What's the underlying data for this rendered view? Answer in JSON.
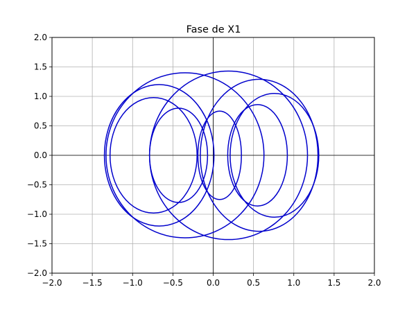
{
  "chart_data": {
    "type": "line",
    "title": "Fase de X1",
    "xlabel": "",
    "ylabel": "",
    "xlim": [
      -2.0,
      2.0
    ],
    "ylim": [
      -2.0,
      2.0
    ],
    "xticks": [
      -2.0,
      -1.5,
      -1.0,
      -0.5,
      0.0,
      0.5,
      1.0,
      1.5,
      2.0
    ],
    "yticks": [
      -2.0,
      -1.5,
      -1.0,
      -0.5,
      0.0,
      0.5,
      1.0,
      1.5,
      2.0
    ],
    "xtick_labels": [
      "−2.0",
      "−1.5",
      "−1.0",
      "−0.5",
      "0.0",
      "0.5",
      "1.0",
      "1.5",
      "2.0"
    ],
    "ytick_labels": [
      "−2.0",
      "−1.5",
      "−1.0",
      "−0.5",
      "0.0",
      "0.5",
      "1.0",
      "1.5",
      "2.0"
    ],
    "grid": true,
    "axis_lines_through_origin": true,
    "line_color": "#0000cc",
    "grid_color": "#b0b0b0",
    "series": [
      {
        "cx": 0.57,
        "cy": 0.0,
        "rx": 0.73,
        "ry": 1.29
      },
      {
        "cx": -0.67,
        "cy": 0.0,
        "rx": 0.68,
        "ry": 1.2
      },
      {
        "cx": 0.76,
        "cy": 0.0,
        "rx": 0.55,
        "ry": 1.05
      },
      {
        "cx": -0.74,
        "cy": 0.0,
        "rx": 0.54,
        "ry": 0.98
      },
      {
        "cx": 0.55,
        "cy": 0.0,
        "rx": 0.37,
        "ry": 0.86
      },
      {
        "cx": -0.43,
        "cy": 0.0,
        "rx": 0.36,
        "ry": 0.8
      },
      {
        "cx": 0.08,
        "cy": 0.0,
        "rx": 0.27,
        "ry": 0.75
      },
      {
        "cx": -0.35,
        "cy": 0.0,
        "rx": 0.98,
        "ry": 1.4
      },
      {
        "cx": 0.19,
        "cy": 0.0,
        "rx": 0.98,
        "ry": 1.43
      }
    ]
  }
}
